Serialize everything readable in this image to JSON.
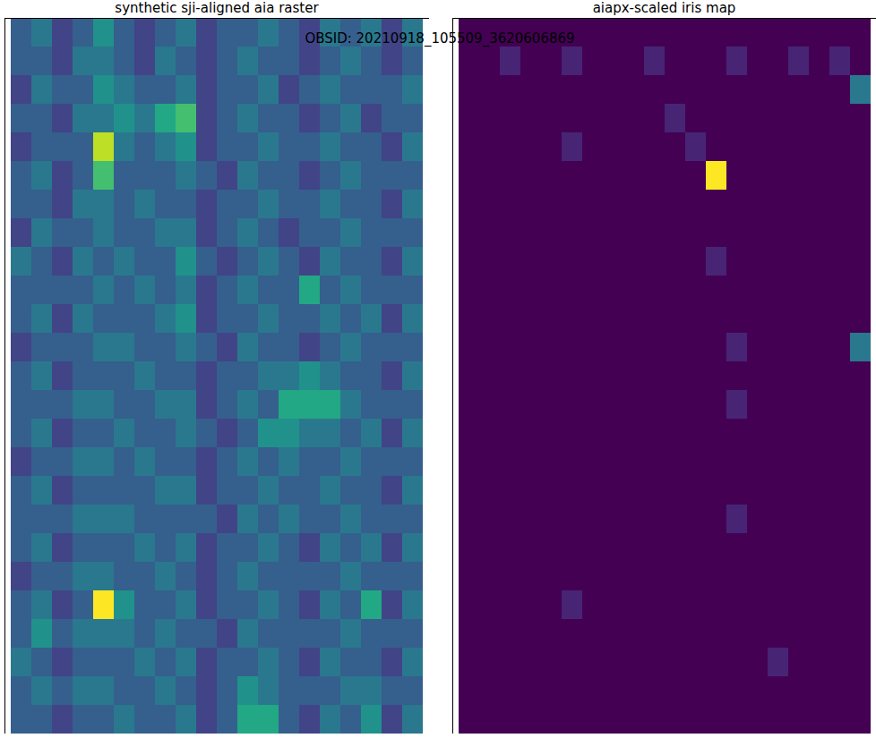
{
  "suptitle": "OBSID: 20210918_105509_3620606869",
  "chart_data": [
    {
      "type": "heatmap",
      "title": "synthetic sji-aligned aia raster",
      "tick_labels": false,
      "zlim": [
        0,
        10
      ],
      "cells": [
        [
          3,
          4,
          2,
          3,
          5,
          3,
          2,
          3,
          4,
          2,
          3,
          3,
          4,
          3,
          2,
          4,
          3,
          4,
          2,
          4
        ],
        [
          3,
          3,
          2,
          4,
          4,
          3,
          2,
          4,
          3,
          2,
          3,
          4,
          3,
          3,
          2,
          3,
          4,
          3,
          2,
          3
        ],
        [
          2,
          4,
          3,
          3,
          5,
          4,
          3,
          3,
          4,
          2,
          3,
          3,
          4,
          2,
          3,
          4,
          3,
          3,
          3,
          4
        ],
        [
          3,
          3,
          2,
          4,
          4,
          5,
          4,
          6,
          7,
          2,
          3,
          4,
          3,
          3,
          2,
          3,
          4,
          2,
          3,
          3
        ],
        [
          2,
          3,
          3,
          3,
          9,
          4,
          3,
          4,
          5,
          2,
          3,
          3,
          4,
          3,
          3,
          4,
          3,
          3,
          2,
          4
        ],
        [
          3,
          4,
          2,
          3,
          7,
          3,
          3,
          3,
          4,
          3,
          2,
          4,
          3,
          3,
          2,
          3,
          4,
          3,
          3,
          3
        ],
        [
          3,
          3,
          2,
          4,
          4,
          3,
          4,
          3,
          3,
          2,
          3,
          3,
          4,
          3,
          3,
          4,
          3,
          3,
          2,
          4
        ],
        [
          2,
          4,
          3,
          3,
          4,
          3,
          3,
          4,
          4,
          2,
          3,
          4,
          3,
          2,
          3,
          3,
          4,
          3,
          3,
          3
        ],
        [
          4,
          3,
          2,
          4,
          3,
          4,
          3,
          3,
          5,
          3,
          2,
          3,
          4,
          3,
          2,
          4,
          3,
          3,
          2,
          4
        ],
        [
          3,
          3,
          3,
          3,
          4,
          3,
          4,
          3,
          4,
          2,
          3,
          4,
          3,
          3,
          6,
          3,
          4,
          3,
          3,
          3
        ],
        [
          3,
          4,
          2,
          4,
          3,
          3,
          3,
          4,
          5,
          2,
          3,
          3,
          4,
          3,
          3,
          4,
          3,
          4,
          2,
          4
        ],
        [
          2,
          3,
          3,
          3,
          4,
          4,
          3,
          3,
          4,
          3,
          2,
          4,
          3,
          3,
          2,
          3,
          4,
          3,
          3,
          3
        ],
        [
          3,
          4,
          2,
          3,
          3,
          3,
          4,
          3,
          3,
          2,
          3,
          3,
          4,
          4,
          5,
          4,
          3,
          3,
          2,
          4
        ],
        [
          3,
          3,
          3,
          4,
          4,
          3,
          3,
          4,
          4,
          2,
          3,
          4,
          3,
          6,
          6,
          6,
          4,
          3,
          3,
          3
        ],
        [
          3,
          4,
          2,
          3,
          3,
          4,
          3,
          3,
          4,
          3,
          2,
          3,
          5,
          5,
          4,
          4,
          3,
          4,
          2,
          4
        ],
        [
          2,
          3,
          3,
          4,
          4,
          3,
          4,
          3,
          3,
          2,
          3,
          4,
          3,
          4,
          3,
          3,
          4,
          3,
          3,
          3
        ],
        [
          3,
          4,
          2,
          3,
          3,
          3,
          3,
          4,
          4,
          2,
          3,
          3,
          4,
          3,
          3,
          4,
          3,
          3,
          2,
          4
        ],
        [
          3,
          3,
          3,
          4,
          4,
          4,
          3,
          3,
          3,
          3,
          2,
          4,
          3,
          4,
          3,
          3,
          4,
          3,
          3,
          3
        ],
        [
          3,
          4,
          2,
          3,
          3,
          3,
          4,
          3,
          4,
          2,
          3,
          3,
          4,
          3,
          2,
          4,
          3,
          4,
          2,
          4
        ],
        [
          2,
          3,
          3,
          4,
          4,
          3,
          3,
          4,
          3,
          2,
          3,
          4,
          3,
          3,
          3,
          3,
          4,
          3,
          3,
          3
        ],
        [
          3,
          4,
          2,
          3,
          10,
          5,
          3,
          3,
          4,
          2,
          3,
          3,
          4,
          3,
          2,
          4,
          3,
          6,
          2,
          4
        ],
        [
          3,
          5,
          3,
          4,
          4,
          4,
          3,
          4,
          3,
          3,
          2,
          4,
          3,
          3,
          3,
          3,
          4,
          3,
          3,
          3
        ],
        [
          4,
          3,
          2,
          3,
          3,
          3,
          4,
          3,
          4,
          2,
          3,
          3,
          4,
          3,
          2,
          4,
          3,
          3,
          2,
          4
        ],
        [
          3,
          4,
          3,
          4,
          4,
          3,
          3,
          4,
          3,
          2,
          3,
          5,
          4,
          3,
          3,
          3,
          4,
          4,
          3,
          3
        ],
        [
          3,
          3,
          2,
          3,
          3,
          4,
          3,
          3,
          4,
          2,
          3,
          6,
          6,
          3,
          2,
          4,
          3,
          5,
          2,
          4
        ]
      ]
    },
    {
      "type": "heatmap",
      "title": "aiapx-scaled iris map",
      "tick_labels": false,
      "zlim": [
        0,
        10
      ],
      "cells": [
        [
          0,
          0,
          0,
          0,
          0,
          0,
          0,
          0,
          0,
          0,
          0,
          0,
          0,
          0,
          0,
          0,
          0,
          0,
          0,
          0
        ],
        [
          0,
          0,
          1,
          0,
          0,
          1,
          0,
          0,
          0,
          1,
          0,
          0,
          0,
          1,
          0,
          0,
          1,
          0,
          1,
          0
        ],
        [
          0,
          0,
          0,
          0,
          0,
          0,
          0,
          0,
          0,
          0,
          0,
          0,
          0,
          0,
          0,
          0,
          0,
          0,
          0,
          4
        ],
        [
          0,
          0,
          0,
          0,
          0,
          0,
          0,
          0,
          0,
          0,
          1,
          0,
          0,
          0,
          0,
          0,
          0,
          0,
          0,
          0
        ],
        [
          0,
          0,
          0,
          0,
          0,
          1,
          0,
          0,
          0,
          0,
          0,
          1,
          0,
          0,
          0,
          0,
          0,
          0,
          0,
          0
        ],
        [
          0,
          0,
          0,
          0,
          0,
          0,
          0,
          0,
          0,
          0,
          0,
          0,
          10,
          0,
          0,
          0,
          0,
          0,
          0,
          0
        ],
        [
          0,
          0,
          0,
          0,
          0,
          0,
          0,
          0,
          0,
          0,
          0,
          0,
          0,
          0,
          0,
          0,
          0,
          0,
          0,
          0
        ],
        [
          0,
          0,
          0,
          0,
          0,
          0,
          0,
          0,
          0,
          0,
          0,
          0,
          0,
          0,
          0,
          0,
          0,
          0,
          0,
          0
        ],
        [
          0,
          0,
          0,
          0,
          0,
          0,
          0,
          0,
          0,
          0,
          0,
          0,
          1,
          0,
          0,
          0,
          0,
          0,
          0,
          0
        ],
        [
          0,
          0,
          0,
          0,
          0,
          0,
          0,
          0,
          0,
          0,
          0,
          0,
          0,
          0,
          0,
          0,
          0,
          0,
          0,
          0
        ],
        [
          0,
          0,
          0,
          0,
          0,
          0,
          0,
          0,
          0,
          0,
          0,
          0,
          0,
          0,
          0,
          0,
          0,
          0,
          0,
          0
        ],
        [
          0,
          0,
          0,
          0,
          0,
          0,
          0,
          0,
          0,
          0,
          0,
          0,
          0,
          1,
          0,
          0,
          0,
          0,
          0,
          4
        ],
        [
          0,
          0,
          0,
          0,
          0,
          0,
          0,
          0,
          0,
          0,
          0,
          0,
          0,
          0,
          0,
          0,
          0,
          0,
          0,
          0
        ],
        [
          0,
          0,
          0,
          0,
          0,
          0,
          0,
          0,
          0,
          0,
          0,
          0,
          0,
          1,
          0,
          0,
          0,
          0,
          0,
          0
        ],
        [
          0,
          0,
          0,
          0,
          0,
          0,
          0,
          0,
          0,
          0,
          0,
          0,
          0,
          0,
          0,
          0,
          0,
          0,
          0,
          0
        ],
        [
          0,
          0,
          0,
          0,
          0,
          0,
          0,
          0,
          0,
          0,
          0,
          0,
          0,
          0,
          0,
          0,
          0,
          0,
          0,
          0
        ],
        [
          0,
          0,
          0,
          0,
          0,
          0,
          0,
          0,
          0,
          0,
          0,
          0,
          0,
          0,
          0,
          0,
          0,
          0,
          0,
          0
        ],
        [
          0,
          0,
          0,
          0,
          0,
          0,
          0,
          0,
          0,
          0,
          0,
          0,
          0,
          1,
          0,
          0,
          0,
          0,
          0,
          0
        ],
        [
          0,
          0,
          0,
          0,
          0,
          0,
          0,
          0,
          0,
          0,
          0,
          0,
          0,
          0,
          0,
          0,
          0,
          0,
          0,
          0
        ],
        [
          0,
          0,
          0,
          0,
          0,
          0,
          0,
          0,
          0,
          0,
          0,
          0,
          0,
          0,
          0,
          0,
          0,
          0,
          0,
          0
        ],
        [
          0,
          0,
          0,
          0,
          0,
          1,
          0,
          0,
          0,
          0,
          0,
          0,
          0,
          0,
          0,
          0,
          0,
          0,
          0,
          0
        ],
        [
          0,
          0,
          0,
          0,
          0,
          0,
          0,
          0,
          0,
          0,
          0,
          0,
          0,
          0,
          0,
          0,
          0,
          0,
          0,
          0
        ],
        [
          0,
          0,
          0,
          0,
          0,
          0,
          0,
          0,
          0,
          0,
          0,
          0,
          0,
          0,
          0,
          1,
          0,
          0,
          0,
          0
        ],
        [
          0,
          0,
          0,
          0,
          0,
          0,
          0,
          0,
          0,
          0,
          0,
          0,
          0,
          0,
          0,
          0,
          0,
          0,
          0,
          0
        ],
        [
          0,
          0,
          0,
          0,
          0,
          0,
          0,
          0,
          0,
          0,
          0,
          0,
          0,
          0,
          0,
          0,
          0,
          0,
          0,
          0
        ]
      ]
    }
  ]
}
